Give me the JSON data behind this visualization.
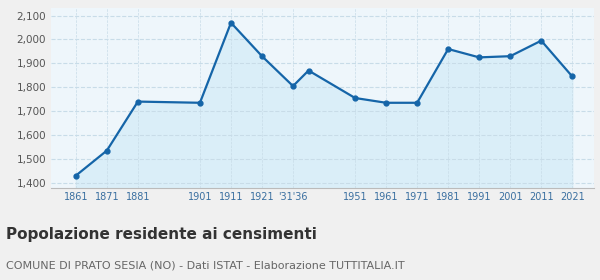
{
  "years": [
    1861,
    1871,
    1881,
    1901,
    1911,
    1921,
    1931,
    1936,
    1951,
    1961,
    1971,
    1981,
    1991,
    2001,
    2011,
    2021
  ],
  "population": [
    1430,
    1535,
    1740,
    1735,
    2070,
    1930,
    1805,
    1870,
    1755,
    1735,
    1735,
    1960,
    1925,
    1930,
    1995,
    1845
  ],
  "xtick_positions": [
    1861,
    1871,
    1881,
    1901,
    1911,
    1921,
    1931,
    1951,
    1961,
    1971,
    1981,
    1991,
    2001,
    2011,
    2021
  ],
  "xtick_labels": [
    "1861",
    "1871",
    "1881",
    "1901",
    "1911",
    "1921",
    "'31'36",
    "1951",
    "1961",
    "1971",
    "1981",
    "1991",
    "2001",
    "2011",
    "2021"
  ],
  "yticks": [
    1400,
    1500,
    1600,
    1700,
    1800,
    1900,
    2000,
    2100
  ],
  "ylim": [
    1380,
    2130
  ],
  "xlim": [
    1853,
    2028
  ],
  "line_color": "#1565a8",
  "fill_color": "#daeef8",
  "marker_color": "#1565a8",
  "bg_color": "#eef6fb",
  "plot_bg_color": "#eef6fb",
  "grid_color": "#c8dce8",
  "title": "Popolazione residente ai censimenti",
  "subtitle": "COMUNE DI PRATO SESIA (NO) - Dati ISTAT - Elaborazione TUTTITALIA.IT",
  "title_fontsize": 11,
  "subtitle_fontsize": 8,
  "tick_color": "#3a6fa0",
  "ytick_color": "#555555"
}
